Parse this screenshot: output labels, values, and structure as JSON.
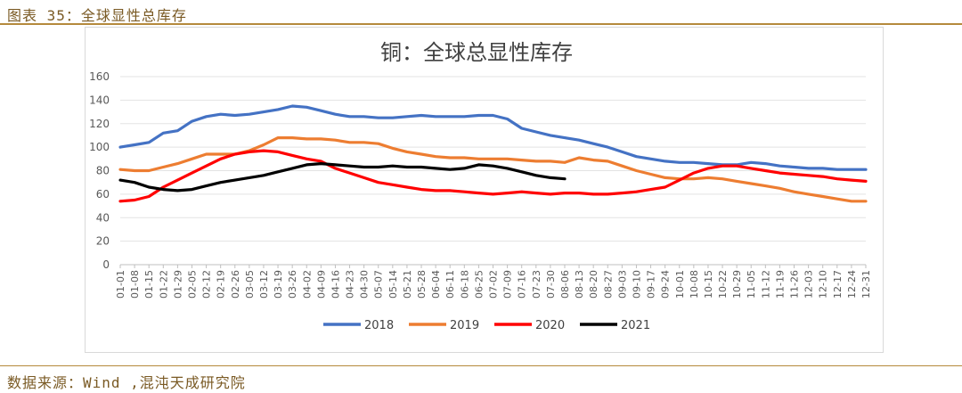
{
  "header": {
    "caption": "图表 35：全球显性总库存"
  },
  "footer": {
    "source": "数据来源：Wind ,混沌天成研究院"
  },
  "chart_data": {
    "type": "line",
    "title": "铜：全球总显性库存",
    "ylim": [
      0,
      160
    ],
    "yticks": [
      0,
      20,
      40,
      60,
      80,
      100,
      120,
      140,
      160
    ],
    "grid": true,
    "legend_position": "bottom",
    "x": [
      "01-01",
      "01-08",
      "01-15",
      "01-22",
      "01-29",
      "02-05",
      "02-12",
      "02-19",
      "02-26",
      "03-05",
      "03-12",
      "03-19",
      "03-26",
      "04-02",
      "04-09",
      "04-16",
      "04-23",
      "04-30",
      "05-07",
      "05-14",
      "05-21",
      "05-28",
      "06-04",
      "06-11",
      "06-18",
      "06-25",
      "07-02",
      "07-09",
      "07-16",
      "07-23",
      "07-30",
      "08-06",
      "08-13",
      "08-20",
      "08-27",
      "09-03",
      "09-10",
      "09-17",
      "09-24",
      "10-01",
      "10-08",
      "10-15",
      "10-22",
      "10-29",
      "11-05",
      "11-12",
      "11-19",
      "11-26",
      "12-03",
      "12-10",
      "12-17",
      "12-24",
      "12-31"
    ],
    "xticks": [
      "01-01",
      "01-08",
      "01-15",
      "01-22",
      "01-29",
      "02-05",
      "02-12",
      "02-19",
      "02-26",
      "03-05",
      "03-12",
      "03-19",
      "03-26",
      "04-02",
      "04-09",
      "04-16",
      "04-23",
      "04-30",
      "05-07",
      "05-14",
      "05-21",
      "05-28",
      "06-04",
      "06-11",
      "06-18",
      "06-25",
      "07-02",
      "07-09",
      "07-16",
      "07-23",
      "07-30",
      "08-06",
      "08-13",
      "08-20",
      "08-27",
      "09-03",
      "09-10",
      "09-17",
      "09-24",
      "10-01",
      "10-08",
      "10-15",
      "10-22",
      "10-29",
      "11-05",
      "11-12",
      "11-19",
      "11-26",
      "12-03",
      "12-10",
      "12-17",
      "12-24",
      "12-31"
    ],
    "series": [
      {
        "name": "2018",
        "color": "#4472c4",
        "values": [
          100,
          102,
          104,
          112,
          114,
          122,
          126,
          128,
          127,
          128,
          130,
          132,
          135,
          134,
          131,
          128,
          126,
          126,
          125,
          125,
          126,
          127,
          126,
          126,
          126,
          127,
          127,
          124,
          116,
          113,
          110,
          108,
          106,
          103,
          100,
          96,
          92,
          90,
          88,
          87,
          87,
          86,
          85,
          85,
          87,
          86,
          84,
          83,
          82,
          82,
          81,
          81,
          81
        ]
      },
      {
        "name": "2019",
        "color": "#ed7d31",
        "values": [
          81,
          80,
          80,
          83,
          86,
          90,
          94,
          94,
          94,
          97,
          102,
          108,
          108,
          107,
          107,
          106,
          104,
          104,
          103,
          99,
          96,
          94,
          92,
          91,
          91,
          90,
          90,
          90,
          89,
          88,
          88,
          87,
          91,
          89,
          88,
          84,
          80,
          77,
          74,
          73,
          73,
          74,
          73,
          71,
          69,
          67,
          65,
          62,
          60,
          58,
          56,
          54,
          54
        ]
      },
      {
        "name": "2020",
        "color": "#ff0000",
        "values": [
          54,
          55,
          58,
          66,
          72,
          78,
          84,
          90,
          94,
          96,
          97,
          96,
          93,
          90,
          88,
          82,
          78,
          74,
          70,
          68,
          66,
          64,
          63,
          63,
          62,
          61,
          60,
          61,
          62,
          61,
          60,
          61,
          61,
          60,
          60,
          61,
          62,
          64,
          66,
          72,
          78,
          82,
          84,
          84,
          82,
          80,
          78,
          77,
          76,
          75,
          73,
          72,
          71
        ]
      },
      {
        "name": "2021",
        "color": "#000000",
        "values": [
          72,
          70,
          66,
          64,
          63,
          64,
          67,
          70,
          72,
          74,
          76,
          79,
          82,
          85,
          86,
          85,
          84,
          83,
          83,
          84,
          83,
          83,
          82,
          81,
          82,
          85,
          84,
          82,
          79,
          76,
          74,
          73,
          null,
          null,
          null,
          null,
          null,
          null,
          null,
          null,
          null,
          null,
          null,
          null,
          null,
          null,
          null,
          null,
          null,
          null,
          null,
          null,
          null
        ]
      }
    ]
  }
}
